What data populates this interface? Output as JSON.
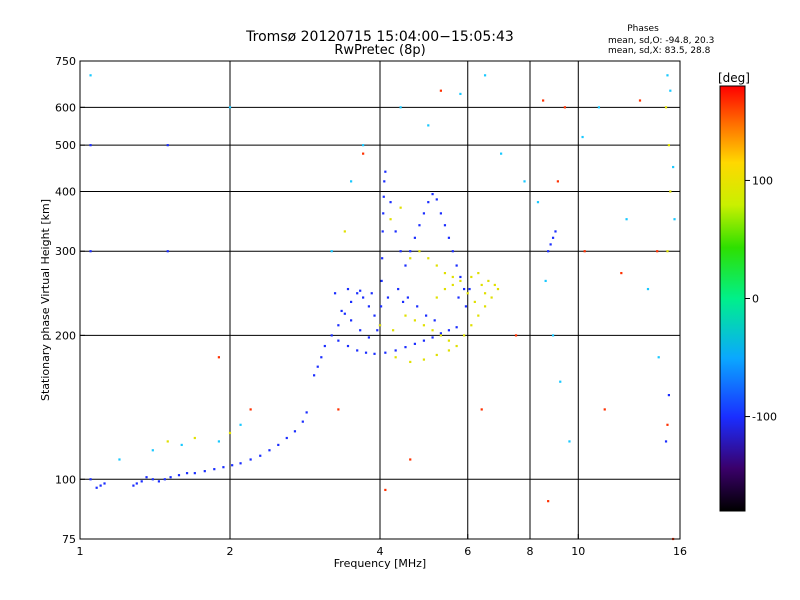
{
  "chart_data": {
    "type": "scatter",
    "title": "Tromsø 20120715 15:04:00−15:05:43",
    "subtitle": "RwPretec (8p)",
    "phases": {
      "heading": "Phases",
      "line_o": "mean, sd,O: -94.8, 20.3",
      "line_x": "mean, sd,X:  83.5, 28.8"
    },
    "xlabel": "Frequency [MHz]",
    "ylabel": "Stationary phase Virtual Height [km]",
    "x_scale": "log",
    "y_scale": "log",
    "xlim": [
      1,
      16
    ],
    "ylim": [
      75,
      750
    ],
    "x_ticks": [
      1,
      2,
      4,
      6,
      8,
      10,
      16
    ],
    "y_ticks": [
      75,
      100,
      200,
      300,
      400,
      500,
      600,
      750
    ],
    "grid_x": [
      2,
      4,
      6,
      8,
      10
    ],
    "grid_y": [
      100,
      200,
      300,
      400,
      500,
      600
    ],
    "colorbar": {
      "label": "[deg]",
      "range": [
        -180,
        180
      ],
      "ticks": [
        100,
        0,
        -100
      ],
      "colormap": "rainbow"
    },
    "series": [
      {
        "points": [
          [
            1.08,
            96
          ],
          [
            1.1,
            97
          ],
          [
            1.12,
            98
          ],
          [
            1.28,
            97
          ],
          [
            1.3,
            98
          ],
          [
            1.33,
            99
          ],
          [
            1.36,
            101
          ],
          [
            1.4,
            100
          ],
          [
            1.44,
            99
          ],
          [
            1.48,
            100
          ],
          [
            1.52,
            101
          ],
          [
            1.58,
            102
          ],
          [
            1.64,
            103
          ],
          [
            1.7,
            103
          ],
          [
            1.78,
            104
          ],
          [
            1.86,
            105
          ],
          [
            1.94,
            106
          ],
          [
            2.02,
            107
          ],
          [
            2.1,
            108
          ],
          [
            2.2,
            110
          ],
          [
            2.3,
            112
          ],
          [
            2.4,
            115
          ],
          [
            2.5,
            118
          ],
          [
            2.6,
            122
          ],
          [
            2.7,
            126
          ],
          [
            2.8,
            132
          ],
          [
            2.85,
            138
          ],
          [
            2.95,
            165
          ],
          [
            3.0,
            172
          ],
          [
            3.05,
            180
          ],
          [
            3.1,
            190
          ],
          [
            3.2,
            200
          ],
          [
            3.3,
            210
          ],
          [
            3.4,
            222
          ],
          [
            3.5,
            235
          ],
          [
            3.6,
            245
          ],
          [
            3.7,
            240
          ],
          [
            3.8,
            230
          ],
          [
            3.9,
            220
          ],
          [
            4.0,
            210
          ],
          [
            3.3,
            195
          ],
          [
            3.45,
            190
          ],
          [
            3.6,
            186
          ],
          [
            3.75,
            184
          ],
          [
            3.9,
            183
          ],
          [
            4.1,
            184
          ],
          [
            4.3,
            186
          ],
          [
            4.5,
            189
          ],
          [
            4.7,
            192
          ],
          [
            4.9,
            195
          ],
          [
            5.1,
            198
          ],
          [
            5.3,
            202
          ],
          [
            5.5,
            205
          ],
          [
            5.7,
            208
          ],
          [
            3.35,
            225
          ],
          [
            3.5,
            215
          ],
          [
            3.65,
            205
          ],
          [
            3.8,
            198
          ],
          [
            3.95,
            205
          ],
          [
            4.02,
            230
          ],
          [
            4.03,
            260
          ],
          [
            4.04,
            290
          ],
          [
            4.05,
            330
          ],
          [
            4.06,
            360
          ],
          [
            4.07,
            390
          ],
          [
            4.08,
            420
          ],
          [
            4.1,
            440
          ],
          [
            4.2,
            380
          ],
          [
            4.3,
            330
          ],
          [
            4.4,
            300
          ],
          [
            4.5,
            280
          ],
          [
            4.6,
            300
          ],
          [
            4.7,
            320
          ],
          [
            4.8,
            340
          ],
          [
            4.9,
            360
          ],
          [
            5.0,
            380
          ],
          [
            5.1,
            395
          ],
          [
            5.2,
            385
          ],
          [
            5.3,
            360
          ],
          [
            5.4,
            340
          ],
          [
            5.5,
            320
          ],
          [
            5.6,
            300
          ],
          [
            5.7,
            280
          ],
          [
            5.8,
            265
          ],
          [
            5.9,
            250
          ],
          [
            4.35,
            250
          ],
          [
            4.55,
            240
          ],
          [
            4.75,
            230
          ],
          [
            4.95,
            220
          ],
          [
            5.15,
            215
          ],
          [
            3.25,
            245
          ],
          [
            3.45,
            250
          ],
          [
            3.65,
            248
          ],
          [
            3.85,
            245
          ],
          [
            4.15,
            240
          ],
          [
            4.45,
            235
          ],
          [
            5.75,
            240
          ],
          [
            5.95,
            230
          ],
          [
            6.05,
            250
          ],
          [
            8.7,
            300
          ],
          [
            8.8,
            310
          ],
          [
            8.9,
            320
          ],
          [
            9.0,
            330
          ],
          [
            1.05,
            100
          ],
          [
            1.05,
            300
          ],
          [
            1.05,
            500
          ],
          [
            1.5,
            300
          ],
          [
            1.5,
            500
          ],
          [
            15.0,
            120
          ],
          [
            15.2,
            150
          ]
        ]
      },
      {
        "points": [
          [
            4.5,
            220
          ],
          [
            4.7,
            215
          ],
          [
            4.9,
            210
          ],
          [
            5.1,
            205
          ],
          [
            5.3,
            200
          ],
          [
            5.5,
            195
          ],
          [
            5.7,
            190
          ],
          [
            5.9,
            200
          ],
          [
            6.1,
            210
          ],
          [
            6.3,
            220
          ],
          [
            6.5,
            230
          ],
          [
            6.7,
            240
          ],
          [
            6.9,
            250
          ],
          [
            5.2,
            240
          ],
          [
            5.4,
            250
          ],
          [
            5.6,
            255
          ],
          [
            5.8,
            260
          ],
          [
            6.0,
            245
          ],
          [
            6.2,
            235
          ],
          [
            6.4,
            255
          ],
          [
            6.6,
            260
          ],
          [
            4.3,
            180
          ],
          [
            4.6,
            176
          ],
          [
            4.9,
            178
          ],
          [
            5.2,
            182
          ],
          [
            5.5,
            186
          ],
          [
            4.2,
            350
          ],
          [
            4.4,
            370
          ],
          [
            4.6,
            290
          ],
          [
            4.8,
            300
          ],
          [
            5.0,
            290
          ],
          [
            5.2,
            280
          ],
          [
            5.4,
            270
          ],
          [
            5.6,
            265
          ],
          [
            6.1,
            265
          ],
          [
            6.3,
            270
          ],
          [
            6.5,
            245
          ],
          [
            4.0,
            210
          ],
          [
            4.25,
            205
          ],
          [
            6.8,
            255
          ],
          [
            1.5,
            120
          ],
          [
            1.7,
            122
          ],
          [
            2.0,
            125
          ],
          [
            3.4,
            330
          ],
          [
            15.0,
            600
          ],
          [
            15.2,
            500
          ],
          [
            15.3,
            400
          ],
          [
            15.1,
            300
          ]
        ]
      },
      {
        "points": [
          [
            1.2,
            110
          ],
          [
            1.4,
            115
          ],
          [
            1.6,
            118
          ],
          [
            1.9,
            120
          ],
          [
            2.1,
            130
          ],
          [
            3.2,
            300
          ],
          [
            3.5,
            420
          ],
          [
            3.7,
            500
          ],
          [
            4.4,
            600
          ],
          [
            5.0,
            550
          ],
          [
            5.8,
            640
          ],
          [
            6.5,
            700
          ],
          [
            7.0,
            480
          ],
          [
            7.8,
            420
          ],
          [
            8.3,
            380
          ],
          [
            8.6,
            260
          ],
          [
            8.9,
            200
          ],
          [
            9.2,
            160
          ],
          [
            9.6,
            120
          ],
          [
            10.2,
            520
          ],
          [
            11.0,
            600
          ],
          [
            12.5,
            350
          ],
          [
            13.8,
            250
          ],
          [
            14.5,
            180
          ],
          [
            15.1,
            700
          ],
          [
            15.3,
            650
          ],
          [
            15.5,
            450
          ],
          [
            15.6,
            350
          ],
          [
            2.0,
            600
          ],
          [
            1.05,
            700
          ]
        ]
      },
      {
        "points": [
          [
            1.9,
            180
          ],
          [
            2.2,
            140
          ],
          [
            3.3,
            140
          ],
          [
            3.7,
            480
          ],
          [
            4.1,
            95
          ],
          [
            4.6,
            110
          ],
          [
            5.3,
            650
          ],
          [
            6.4,
            140
          ],
          [
            7.5,
            200
          ],
          [
            8.5,
            620
          ],
          [
            8.7,
            90
          ],
          [
            9.1,
            420
          ],
          [
            9.4,
            600
          ],
          [
            10.3,
            300
          ],
          [
            11.3,
            140
          ],
          [
            12.2,
            270
          ],
          [
            13.3,
            620
          ],
          [
            14.4,
            300
          ],
          [
            15.1,
            130
          ],
          [
            15.5,
            75
          ]
        ]
      }
    ]
  }
}
